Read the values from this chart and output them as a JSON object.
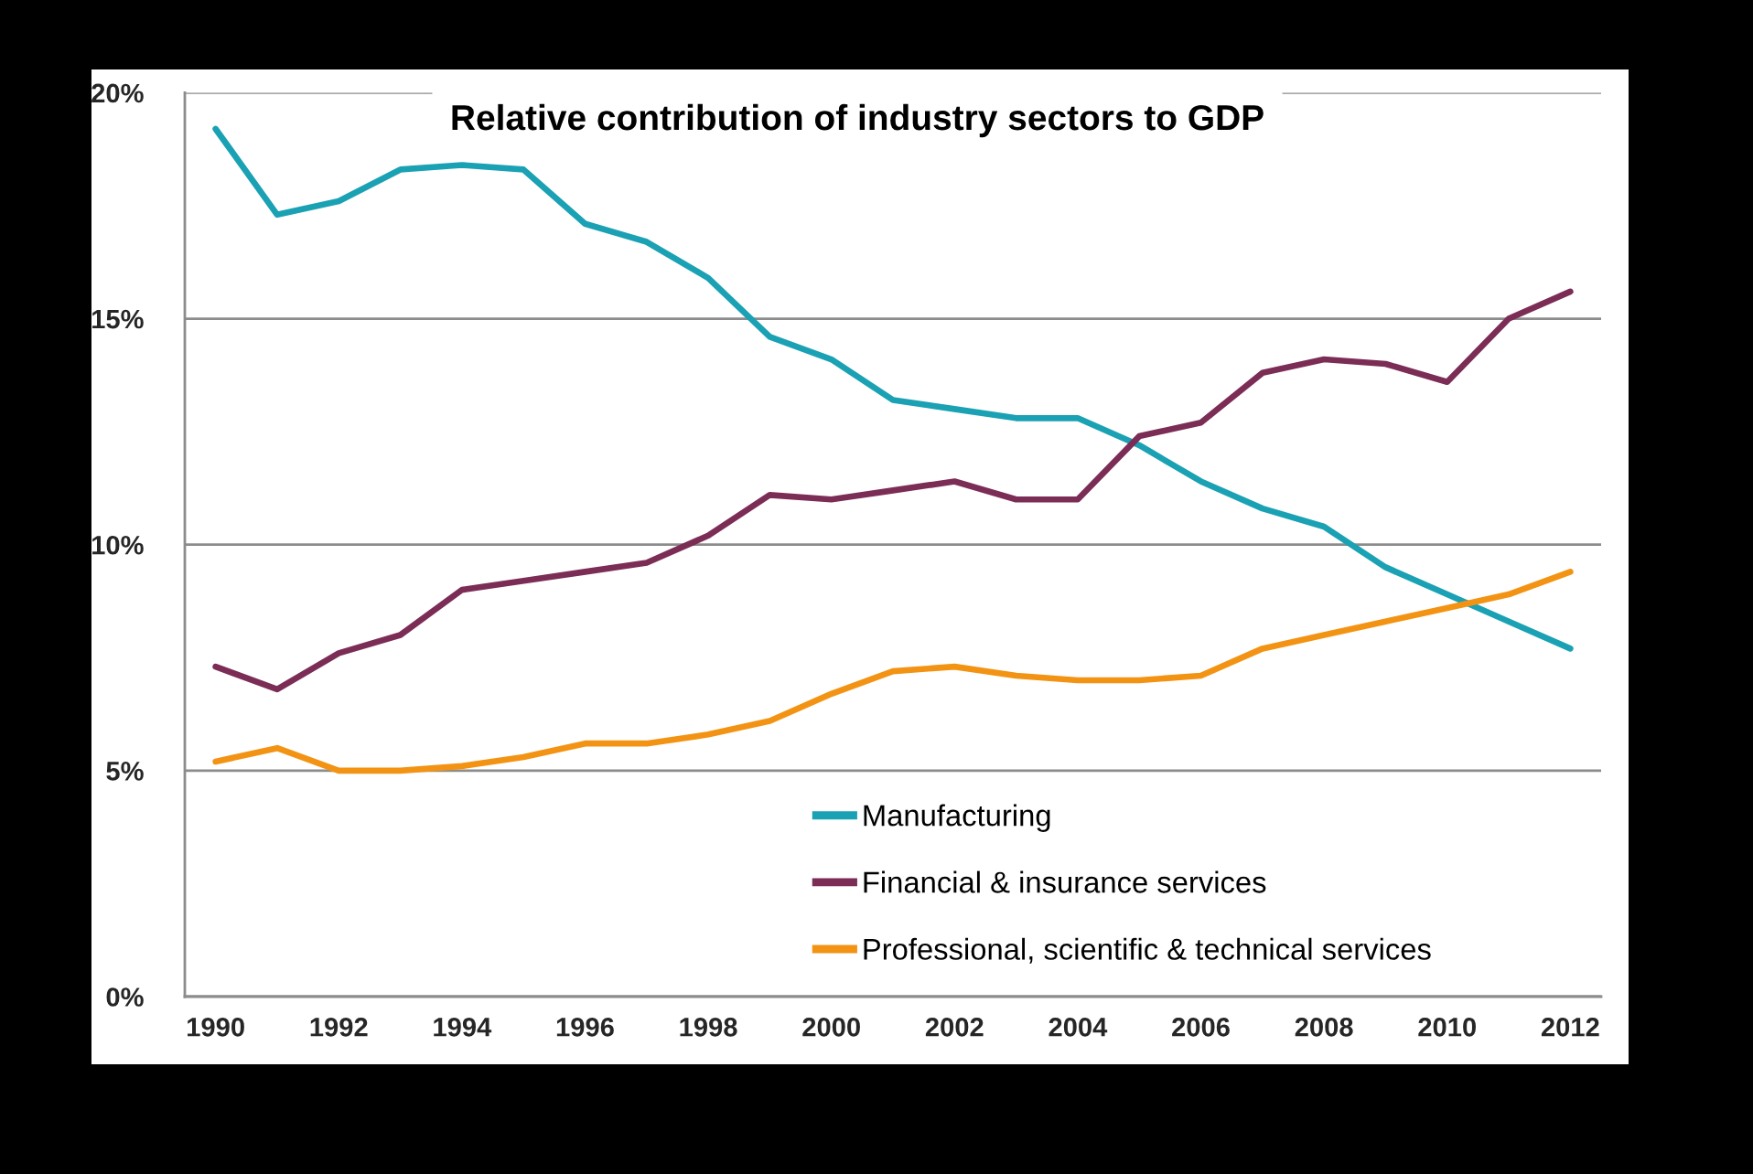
{
  "chart_data": {
    "type": "line",
    "title": "Relative contribution of industry sectors to GDP",
    "categories": [
      "1990",
      null,
      "1992",
      null,
      "1994",
      null,
      "1996",
      null,
      "1998",
      null,
      "2000",
      null,
      "2002",
      null,
      "2004",
      null,
      "2006",
      null,
      "2008",
      null,
      "2010",
      null,
      "2012"
    ],
    "series": [
      {
        "name": "Manufacturing",
        "color": "#1ba1b4",
        "values": [
          19.2,
          17.3,
          17.6,
          18.3,
          18.4,
          18.3,
          17.1,
          16.7,
          15.9,
          14.6,
          14.1,
          13.2,
          13.0,
          12.8,
          12.8,
          12.2,
          11.4,
          10.8,
          10.4,
          9.5,
          8.9,
          8.3,
          7.7
        ]
      },
      {
        "name": "Financial & insurance services",
        "color": "#7b2d55",
        "values": [
          7.3,
          6.8,
          7.6,
          8.0,
          9.0,
          9.2,
          9.4,
          9.6,
          10.2,
          11.1,
          11.0,
          11.2,
          11.4,
          11.0,
          11.0,
          12.4,
          12.7,
          13.8,
          14.1,
          14.0,
          13.6,
          15.0,
          15.6
        ]
      },
      {
        "name": "Professional, scientific & technical services",
        "color": "#f39314",
        "values": [
          5.2,
          5.5,
          5.0,
          5.0,
          5.1,
          5.3,
          5.6,
          5.6,
          5.8,
          6.1,
          6.7,
          7.2,
          7.3,
          7.1,
          7.0,
          7.0,
          7.1,
          7.7,
          8.0,
          8.3,
          8.6,
          8.9,
          9.4
        ]
      }
    ],
    "ylim": [
      0,
      20
    ],
    "yticks": [
      {
        "value": 0,
        "label": "0%"
      },
      {
        "value": 5,
        "label": "5%"
      },
      {
        "value": 10,
        "label": "10%"
      },
      {
        "value": 15,
        "label": "15%"
      },
      {
        "value": 20,
        "label": "20%"
      }
    ],
    "grid": "y",
    "legend": "bottom",
    "line_style": "solid"
  }
}
